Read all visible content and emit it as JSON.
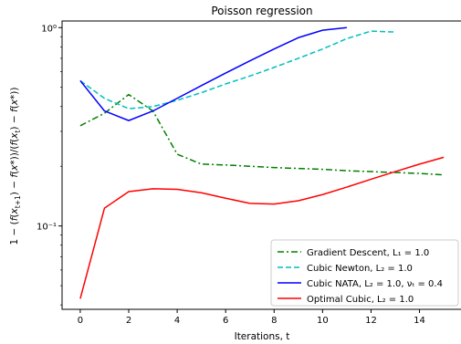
{
  "chart_data": {
    "type": "line",
    "title": "Poisson regression",
    "xlabel": "Iterations, t",
    "ylabel": "1 − (f(x_{t+1}) − f(x*))/(f(x_t) − f(x*))",
    "xlim": [
      -0.75,
      15.75
    ],
    "ylim": [
      0.038,
      1.08
    ],
    "yscale": "log",
    "grid": false,
    "legend_position": "lower-right",
    "x_ticks": [
      0,
      2,
      4,
      6,
      8,
      10,
      12,
      14
    ],
    "x_tick_labels": [
      "0",
      "2",
      "4",
      "6",
      "8",
      "10",
      "12",
      "14"
    ],
    "y_ticks": [
      {
        "value": 1.0,
        "label": "10⁰"
      },
      {
        "value": 0.1,
        "label": "10⁻¹"
      }
    ],
    "series": [
      {
        "name": "Gradient Descent, L₁ = 1.0",
        "color": "#008000",
        "dash": "dashdot",
        "x": [
          0,
          1,
          2,
          3,
          4,
          5,
          6,
          7,
          8,
          9,
          10,
          11,
          12,
          13,
          14,
          15
        ],
        "y": [
          0.32,
          0.37,
          0.46,
          0.38,
          0.23,
          0.205,
          0.203,
          0.2,
          0.197,
          0.195,
          0.193,
          0.19,
          0.188,
          0.186,
          0.184,
          0.181
        ]
      },
      {
        "name": "Cubic Newton, L₂ = 1.0",
        "color": "#00bfbf",
        "dash": "dashed",
        "x": [
          0,
          1,
          2,
          3,
          4,
          5,
          6,
          7,
          8,
          9,
          10,
          11,
          12,
          13
        ],
        "y": [
          0.54,
          0.44,
          0.39,
          0.4,
          0.43,
          0.47,
          0.52,
          0.57,
          0.63,
          0.7,
          0.78,
          0.88,
          0.96,
          0.95
        ]
      },
      {
        "name": "Cubic NATA, L₂ = 1.0, νₜ = 0.4",
        "color": "#0000ff",
        "dash": "solid",
        "x": [
          0,
          1,
          2,
          3,
          4,
          5,
          6,
          7,
          8,
          9,
          10,
          11
        ],
        "y": [
          0.54,
          0.38,
          0.34,
          0.38,
          0.44,
          0.51,
          0.59,
          0.68,
          0.78,
          0.89,
          0.97,
          1.0
        ]
      },
      {
        "name": "Optimal Cubic, L₂ = 1.0",
        "color": "#ff0000",
        "dash": "solid",
        "x": [
          0,
          1,
          2,
          3,
          4,
          5,
          6,
          7,
          8,
          9,
          10,
          11,
          12,
          13,
          14,
          15
        ],
        "y": [
          0.043,
          0.123,
          0.149,
          0.154,
          0.153,
          0.147,
          0.138,
          0.13,
          0.129,
          0.134,
          0.144,
          0.157,
          0.172,
          0.188,
          0.205,
          0.222
        ]
      }
    ]
  }
}
